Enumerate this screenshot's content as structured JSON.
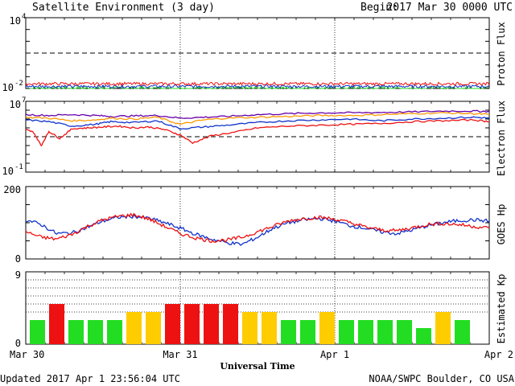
{
  "header": {
    "title": "Satellite Environment (3 day)",
    "begin_label": "Begin:",
    "begin_value": "2017 Mar 30 0000 UTC"
  },
  "footer": {
    "updated": "Updated 2017 Apr  1 23:56:04 UTC",
    "credit": "NOAA/SWPC Boulder, CO USA"
  },
  "colors": {
    "red": "#ee1111",
    "blue": "#1133cc",
    "green": "#22dd22",
    "yellow": "#ffcc00",
    "purple": "#6600aa",
    "orange": "#ff9900"
  },
  "chart_data": [
    {
      "type": "line",
      "ylabel": "Proton Flux",
      "yscale": "log",
      "ylim": [
        0.01,
        10000
      ],
      "ytick_labels": [
        {
          "base": "10",
          "exp": "4"
        },
        {
          "base": "10",
          "exp": "-2"
        }
      ],
      "threshold": 10,
      "series": [
        {
          "color": "red",
          "level": 0.025,
          "noise": 0.25
        },
        {
          "color": "blue",
          "level": 0.015,
          "noise": 0.25
        },
        {
          "color": "green",
          "level": 0.01,
          "noise": 0.35
        }
      ]
    },
    {
      "type": "line",
      "ylabel": "Electron Flux",
      "yscale": "log",
      "ylim": [
        0.1,
        10000000
      ],
      "ytick_labels": [
        {
          "base": "10",
          "exp": "7"
        },
        {
          "base": "10",
          "exp": "-1"
        }
      ],
      "threshold": 1000,
      "series": [
        {
          "color": "purple",
          "x": [
            0,
            0.15,
            0.3,
            0.45,
            0.55,
            0.7,
            0.85,
            1.0,
            1.15,
            1.3,
            1.5,
            1.7,
            1.9,
            2.1,
            2.3,
            2.5,
            2.7,
            2.9,
            3.0
          ],
          "y": [
            5.5,
            5.4,
            5.5,
            5.4,
            5.3,
            5.35,
            5.4,
            5.1,
            5.2,
            5.3,
            5.5,
            5.6,
            5.7,
            5.7,
            5.75,
            5.8,
            5.9,
            5.9,
            5.85
          ]
        },
        {
          "color": "orange",
          "x": [
            0,
            0.15,
            0.3,
            0.45,
            0.55,
            0.7,
            0.85,
            1.0,
            1.15,
            1.3,
            1.5,
            1.7,
            1.9,
            2.1,
            2.3,
            2.5,
            2.7,
            2.9,
            3.0
          ],
          "y": [
            5.2,
            5.1,
            4.8,
            4.9,
            5.1,
            5.0,
            5.2,
            4.4,
            4.9,
            5.1,
            5.2,
            5.3,
            5.4,
            5.4,
            5.5,
            5.6,
            5.7,
            5.6,
            5.5
          ]
        },
        {
          "color": "blue",
          "x": [
            0,
            0.15,
            0.3,
            0.45,
            0.55,
            0.7,
            0.85,
            1.0,
            1.15,
            1.3,
            1.5,
            1.7,
            1.9,
            2.1,
            2.3,
            2.5,
            2.7,
            2.9,
            3.0
          ],
          "y": [
            4.9,
            4.7,
            4.2,
            4.4,
            4.7,
            4.6,
            4.8,
            3.9,
            4.1,
            4.3,
            4.6,
            4.8,
            4.9,
            5.0,
            4.8,
            5.0,
            5.1,
            5.2,
            5.1
          ]
        },
        {
          "color": "red",
          "x": [
            0,
            0.05,
            0.1,
            0.15,
            0.22,
            0.3,
            0.4,
            0.5,
            0.6,
            0.7,
            0.8,
            0.9,
            1.0,
            1.08,
            1.2,
            1.35,
            1.5,
            1.7,
            1.9,
            2.1,
            2.3,
            2.5,
            2.7,
            2.9,
            3.0
          ],
          "y": [
            3.8,
            3.5,
            2.0,
            3.6,
            2.8,
            3.9,
            4.0,
            4.1,
            4.2,
            4.0,
            4.1,
            3.8,
            3.2,
            2.3,
            3.1,
            3.5,
            4.0,
            4.2,
            4.3,
            4.4,
            4.5,
            4.7,
            4.8,
            4.9,
            4.7
          ]
        }
      ]
    },
    {
      "type": "line",
      "ylabel": "GOES Hp",
      "ylim": [
        0,
        200
      ],
      "yticks": [
        200,
        0
      ],
      "series": [
        {
          "color": "blue",
          "x": [
            0,
            0.1,
            0.2,
            0.3,
            0.4,
            0.5,
            0.6,
            0.7,
            0.8,
            0.9,
            1.0,
            1.1,
            1.2,
            1.3,
            1.4,
            1.5,
            1.6,
            1.7,
            1.8,
            1.9,
            2.0,
            2.1,
            2.2,
            2.3,
            2.4,
            2.5,
            2.6,
            2.7,
            2.8,
            2.9,
            3.0
          ],
          "y": [
            108,
            95,
            70,
            72,
            88,
            105,
            115,
            118,
            112,
            100,
            85,
            68,
            55,
            45,
            40,
            60,
            85,
            100,
            108,
            112,
            105,
            92,
            85,
            75,
            70,
            80,
            92,
            100,
            106,
            108,
            105
          ]
        },
        {
          "color": "red",
          "x": [
            0,
            0.1,
            0.2,
            0.3,
            0.4,
            0.5,
            0.6,
            0.7,
            0.8,
            0.9,
            1.0,
            1.1,
            1.2,
            1.3,
            1.4,
            1.5,
            1.6,
            1.7,
            1.8,
            1.9,
            2.0,
            2.1,
            2.2,
            2.3,
            2.4,
            2.5,
            2.6,
            2.7,
            2.8,
            2.9,
            3.0
          ],
          "y": [
            75,
            60,
            55,
            68,
            90,
            108,
            118,
            122,
            110,
            90,
            70,
            58,
            50,
            52,
            60,
            75,
            90,
            105,
            112,
            115,
            110,
            100,
            88,
            80,
            78,
            86,
            95,
            98,
            95,
            90,
            85
          ]
        }
      ]
    },
    {
      "type": "bar",
      "ylabel": "Estimated Kp",
      "ylim": [
        0,
        9
      ],
      "yticks": [
        9,
        0
      ],
      "values": [
        3,
        5,
        3,
        3,
        3,
        4,
        4,
        5,
        5,
        5,
        5,
        4,
        4,
        3,
        3,
        4,
        3,
        3,
        3,
        3,
        2,
        4,
        3
      ],
      "colors": [
        "green",
        "red",
        "green",
        "green",
        "green",
        "yellow",
        "yellow",
        "red",
        "red",
        "red",
        "red",
        "yellow",
        "yellow",
        "green",
        "green",
        "yellow",
        "green",
        "green",
        "green",
        "green",
        "green",
        "yellow",
        "green"
      ]
    }
  ],
  "x_axis": {
    "label": "Universal Time",
    "ticks": [
      "Mar 30",
      "Mar 31",
      "Apr 1",
      "Apr 2"
    ]
  }
}
